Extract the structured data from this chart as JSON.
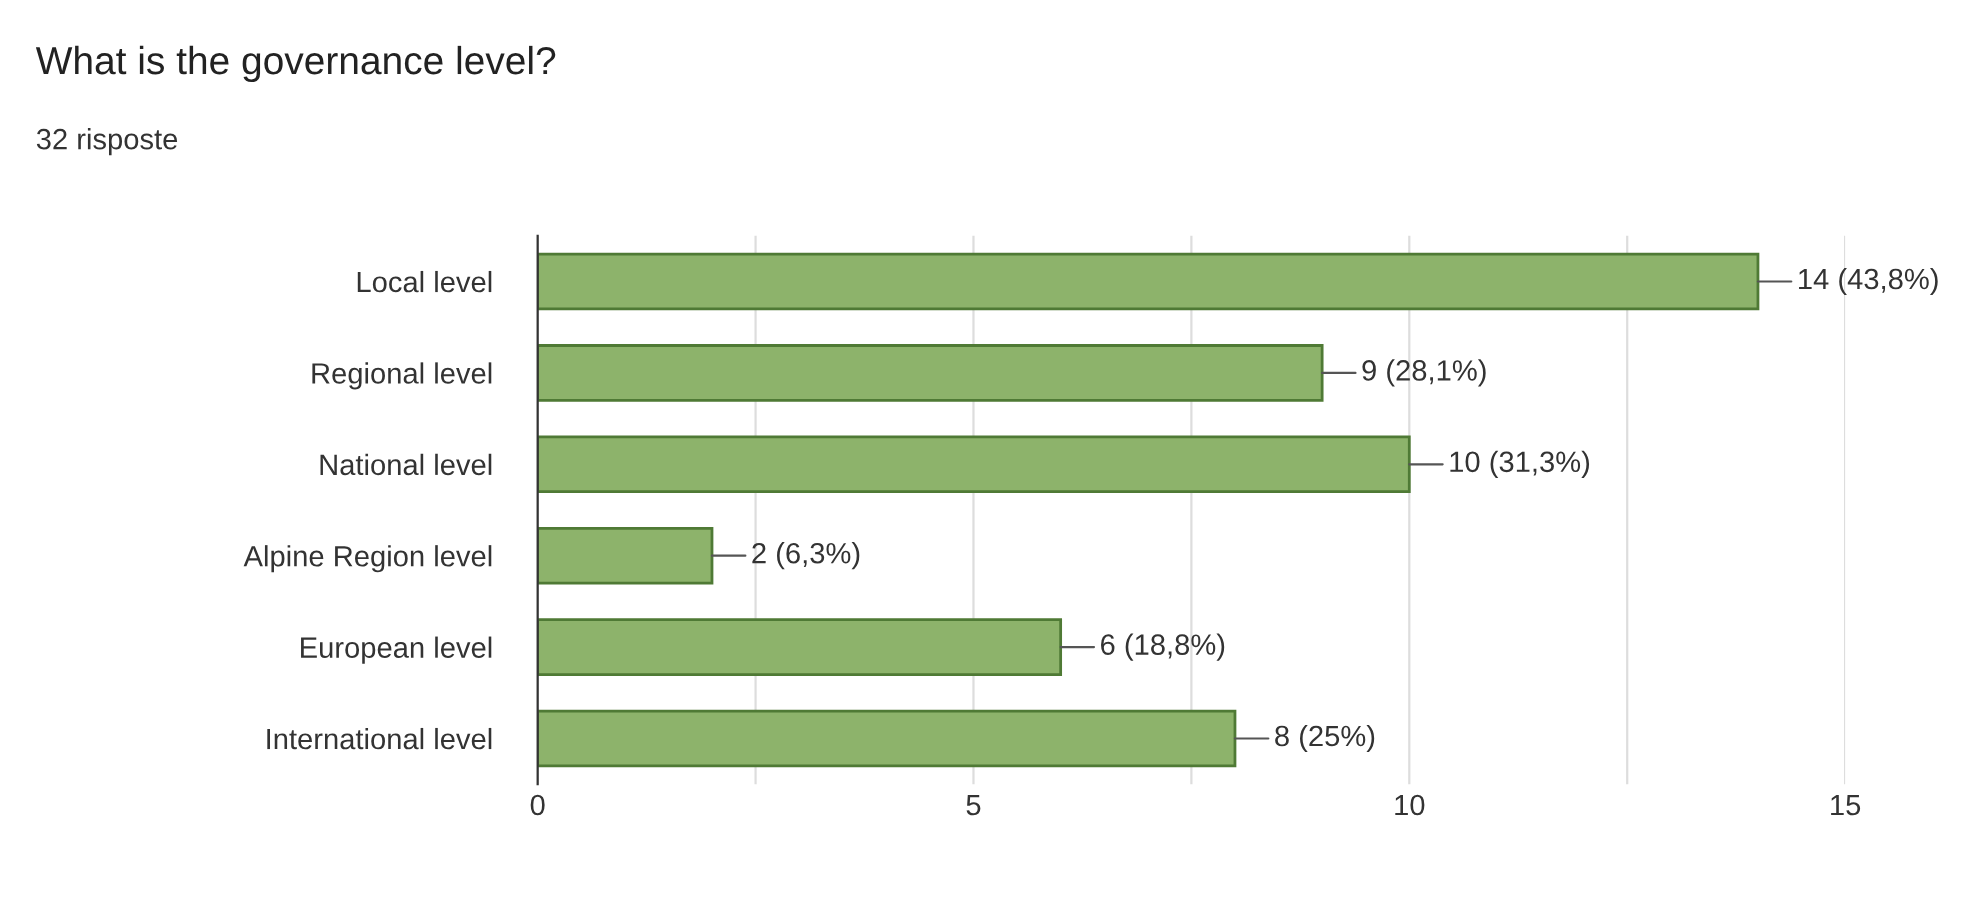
{
  "chart_data": {
    "type": "bar",
    "orientation": "horizontal",
    "title": "What is the governance level?",
    "subtitle": "32 risposte",
    "categories": [
      "Local level",
      "Regional level",
      "National level",
      "Alpine Region level",
      "European level",
      "International level"
    ],
    "values": [
      14,
      9,
      10,
      2,
      6,
      8
    ],
    "value_labels": [
      "14 (43,8%)",
      "9 (28,1%)",
      "10 (31,3%)",
      "2 (6,3%)",
      "6 (18,8%)",
      "8 (25%)"
    ],
    "color": "#8db36b",
    "xlim": [
      0,
      15
    ],
    "xticks": [
      0,
      {
        "value": 2.5,
        "label": null
      },
      5,
      {
        "value": 7.5,
        "label": null
      },
      10,
      {
        "value": 12.5,
        "label": null
      },
      15
    ],
    "grid": "x"
  }
}
